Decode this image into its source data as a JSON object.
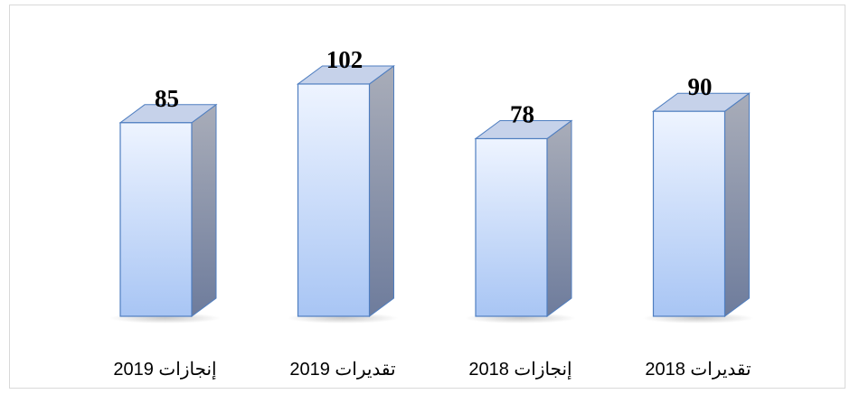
{
  "chart_data": {
    "type": "bar3d",
    "categories": [
      "إنجازات 2019",
      "تقديرات 2019",
      "إنجازات 2018",
      "تقديرات 2018"
    ],
    "values": [
      85,
      102,
      78,
      90
    ]
  }
}
